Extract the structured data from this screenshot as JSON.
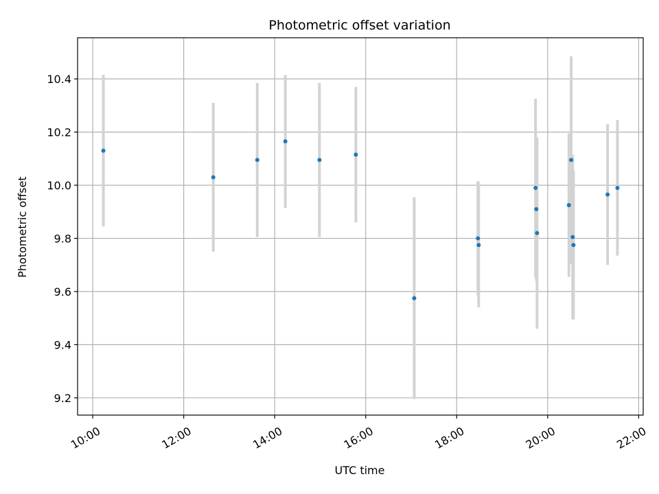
{
  "chart_data": {
    "type": "scatter",
    "title": "Photometric offset variation",
    "xlabel": "UTC time",
    "ylabel": "Photometric offset",
    "xlim": [
      "09:40",
      "22:06"
    ],
    "ylim": [
      9.135,
      10.555
    ],
    "x_ticks": [
      "10:00",
      "12:00",
      "14:00",
      "16:00",
      "18:00",
      "20:00",
      "22:00"
    ],
    "y_ticks": [
      "9.2",
      "9.4",
      "9.6",
      "9.8",
      "10.0",
      "10.2",
      "10.4"
    ],
    "grid": true,
    "marker_color": "#1f77b4",
    "errorbar_color": "#d3d3d3",
    "points": [
      {
        "time": "10:14",
        "y": 10.13,
        "err": 0.285
      },
      {
        "time": "12:39",
        "y": 10.03,
        "err": 0.28
      },
      {
        "time": "13:37",
        "y": 10.095,
        "err": 0.29
      },
      {
        "time": "14:14",
        "y": 10.165,
        "err": 0.25
      },
      {
        "time": "14:59",
        "y": 10.095,
        "err": 0.29
      },
      {
        "time": "15:47",
        "y": 10.115,
        "err": 0.255
      },
      {
        "time": "17:04",
        "y": 9.575,
        "err": 0.38
      },
      {
        "time": "18:28",
        "y": 9.8,
        "err": 0.215
      },
      {
        "time": "18:29",
        "y": 9.775,
        "err": 0.235
      },
      {
        "time": "19:44",
        "y": 9.99,
        "err": 0.335
      },
      {
        "time": "19:45",
        "y": 9.91,
        "err": 0.27
      },
      {
        "time": "19:46",
        "y": 9.82,
        "err": 0.36
      },
      {
        "time": "20:28",
        "y": 9.925,
        "err": 0.27
      },
      {
        "time": "20:31",
        "y": 10.095,
        "err": 0.39
      },
      {
        "time": "20:33",
        "y": 9.805,
        "err": 0.31
      },
      {
        "time": "20:34",
        "y": 9.775,
        "err": 0.28
      },
      {
        "time": "21:19",
        "y": 9.965,
        "err": 0.265
      },
      {
        "time": "21:32",
        "y": 9.99,
        "err": 0.255
      }
    ]
  }
}
